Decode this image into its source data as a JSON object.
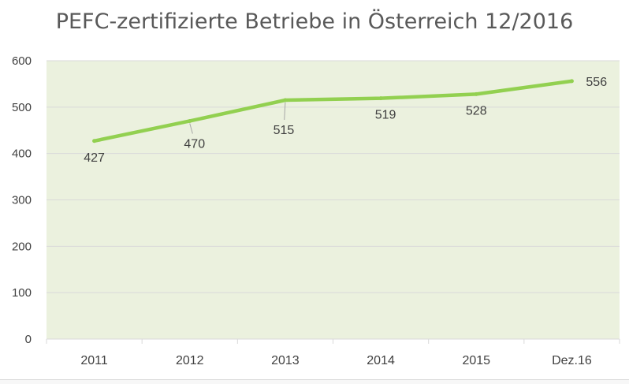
{
  "chart_data": {
    "type": "line",
    "title": "PEFC-zertifizierte Betriebe in Österreich 12/2016",
    "categories": [
      "2011",
      "2012",
      "2013",
      "2014",
      "2015",
      "Dez.16"
    ],
    "series": [
      {
        "values": [
          427,
          470,
          515,
          519,
          528,
          556
        ]
      }
    ],
    "ylim": [
      0,
      600
    ],
    "yticks": [
      0,
      100,
      200,
      300,
      400,
      500,
      600
    ],
    "grid": true,
    "legend": "none",
    "colors": {
      "line": "#92d050",
      "plot_background": "#ebf1de",
      "grid": "#d9d9d9",
      "leader": "#a6a6a6"
    }
  }
}
